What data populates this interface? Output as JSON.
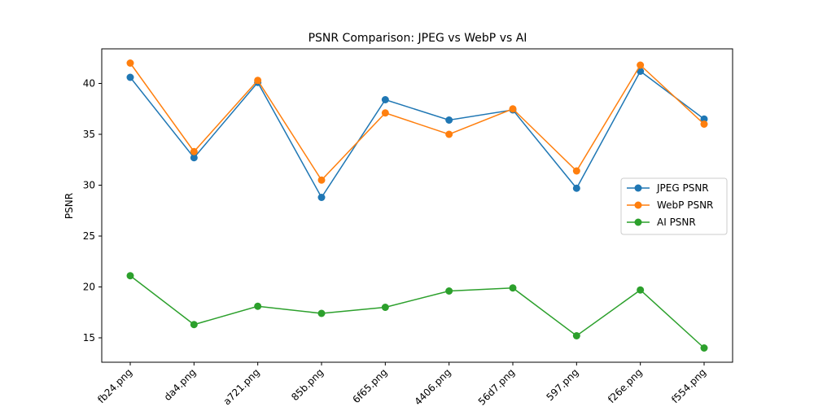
{
  "chart_data": {
    "type": "line",
    "title": "PSNR Comparison: JPEG vs WebP vs AI",
    "xlabel": "",
    "ylabel": "PSNR",
    "categories": [
      "fb24.png",
      "da4.png",
      "a721.png",
      "85b.png",
      "6f65.png",
      "4406.png",
      "56d7.png",
      "597.png",
      "f26e.png",
      "f554.png"
    ],
    "series": [
      {
        "name": "JPEG PSNR",
        "color": "#1f77b4",
        "values": [
          40.6,
          32.7,
          40.1,
          28.8,
          38.4,
          36.4,
          37.4,
          29.7,
          41.2,
          36.5
        ]
      },
      {
        "name": "WebP PSNR",
        "color": "#ff7f0e",
        "values": [
          42.0,
          33.3,
          40.3,
          30.5,
          37.1,
          35.0,
          37.5,
          31.4,
          41.8,
          36.0
        ]
      },
      {
        "name": "AI PSNR",
        "color": "#2ca02c",
        "values": [
          21.1,
          16.3,
          18.1,
          17.4,
          18.0,
          19.6,
          19.9,
          15.2,
          19.7,
          14.0
        ]
      }
    ],
    "ylim": [
      12.6,
      43.4
    ],
    "yticks": [
      15,
      20,
      25,
      30,
      35,
      40
    ],
    "grid": false,
    "legend_position": "center-right"
  }
}
